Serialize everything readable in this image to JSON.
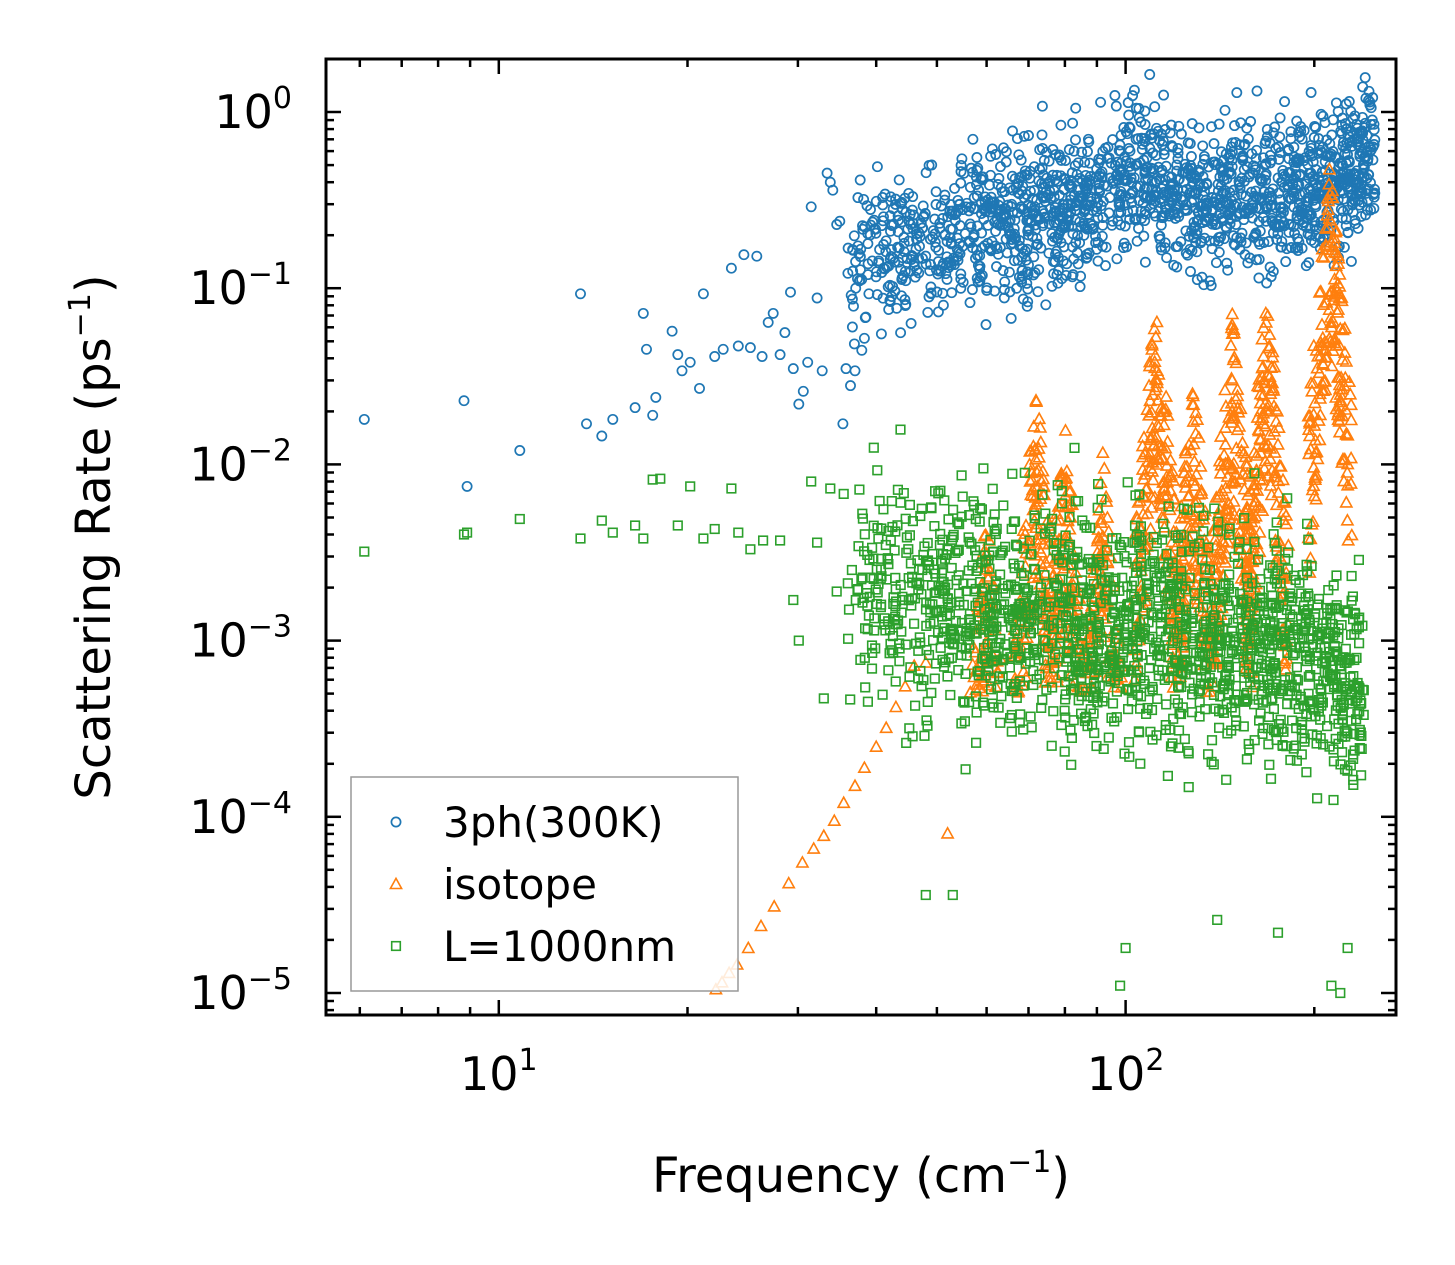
{
  "chart_data": {
    "type": "scatter",
    "xscale": "log",
    "yscale": "log",
    "xlabel": "Frequency (cm",
    "xlabel_unit_exp": "−1",
    "xlabel_close": ")",
    "ylabel": "Scattering Rate (ps",
    "ylabel_unit_exp": "−1",
    "ylabel_close": ")",
    "xlim": [
      5.3,
      270
    ],
    "ylim": [
      7.5e-06,
      2.0
    ],
    "x_ticks": [
      {
        "value": 10,
        "base": "10",
        "exp": "1"
      },
      {
        "value": 100,
        "base": "10",
        "exp": "2"
      }
    ],
    "y_ticks": [
      {
        "value": 1,
        "base": "10",
        "exp": "0"
      },
      {
        "value": 0.1,
        "base": "10",
        "exp": "−1"
      },
      {
        "value": 0.01,
        "base": "10",
        "exp": "−2"
      },
      {
        "value": 0.001,
        "base": "10",
        "exp": "−3"
      },
      {
        "value": 0.0001,
        "base": "10",
        "exp": "−4"
      },
      {
        "value": 1e-05,
        "base": "10",
        "exp": "−5"
      }
    ],
    "legend_position": "lower-left",
    "series": [
      {
        "name": "3ph(300K)",
        "marker": "circle",
        "color": "#1f77b4",
        "points": [
          [
            6.1,
            0.018
          ],
          [
            8.8,
            0.023
          ],
          [
            8.9,
            0.0075
          ],
          [
            10.8,
            0.012
          ],
          [
            13.5,
            0.093
          ],
          [
            13.8,
            0.017
          ],
          [
            14.6,
            0.0145
          ],
          [
            15.2,
            0.018
          ],
          [
            16.5,
            0.021
          ],
          [
            17,
            0.072
          ],
          [
            17.2,
            0.045
          ],
          [
            17.6,
            0.019
          ],
          [
            17.8,
            0.024
          ],
          [
            18.9,
            0.057
          ],
          [
            19.3,
            0.042
          ],
          [
            19.6,
            0.034
          ],
          [
            20.2,
            0.038
          ],
          [
            20.9,
            0.027
          ],
          [
            21.2,
            0.093
          ],
          [
            22.1,
            0.041
          ],
          [
            22.8,
            0.045
          ],
          [
            23.5,
            0.13
          ],
          [
            24.1,
            0.047
          ],
          [
            24.6,
            0.155
          ],
          [
            25.2,
            0.046
          ],
          [
            25.8,
            0.152
          ],
          [
            26.3,
            0.041
          ],
          [
            26.9,
            0.064
          ],
          [
            27.4,
            0.072
          ],
          [
            28.1,
            0.042
          ],
          [
            28.6,
            0.056
          ],
          [
            29.2,
            0.095
          ],
          [
            29.5,
            0.035
          ],
          [
            30.1,
            0.022
          ],
          [
            30.6,
            0.026
          ],
          [
            31.1,
            0.038
          ],
          [
            31.5,
            0.29
          ],
          [
            32.2,
            0.088
          ],
          [
            32.8,
            0.034
          ],
          [
            33.4,
            0.45
          ],
          [
            33.8,
            0.4
          ],
          [
            34.1,
            0.36
          ],
          [
            34.6,
            0.23
          ],
          [
            35,
            0.24
          ],
          [
            35.4,
            0.017
          ],
          [
            35.8,
            0.035
          ],
          [
            36.4,
            0.028
          ],
          [
            37,
            0.034
          ],
          [
            37.6,
            0.11
          ],
          [
            38.3,
            0.052
          ]
        ],
        "band": {
          "x_start": 36,
          "x_end": 250,
          "center": [
            0.13,
            0.17,
            0.2,
            0.25,
            0.3,
            0.45,
            0.3,
            0.35,
            0.4,
            0.55
          ],
          "spread": 2.6
        }
      },
      {
        "name": "isotope",
        "marker": "triangle",
        "color": "#ff7f0e",
        "points": [
          [
            22.2,
            1.05e-05
          ],
          [
            22.7,
            1.15e-05
          ],
          [
            23.3,
            1.3e-05
          ],
          [
            24,
            1.45e-05
          ],
          [
            25,
            1.8e-05
          ],
          [
            26.2,
            2.4e-05
          ],
          [
            27.5,
            3.1e-05
          ],
          [
            29,
            4.2e-05
          ],
          [
            30.5,
            5.5e-05
          ],
          [
            31.8,
            6.6e-05
          ],
          [
            33,
            7.8e-05
          ],
          [
            34.3,
            9.5e-05
          ],
          [
            35.5,
            0.00012
          ],
          [
            37,
            0.00015
          ],
          [
            38.3,
            0.00019
          ],
          [
            40,
            0.00025
          ],
          [
            41.5,
            0.00032
          ],
          [
            43,
            0.00042
          ],
          [
            44.5,
            0.00055
          ],
          [
            46,
            0.00072
          ],
          [
            48,
            0.00075
          ],
          [
            52,
            8.05e-05
          ]
        ],
        "peaks": [
          {
            "x": 60,
            "y": 0.006
          },
          {
            "x": 72,
            "y": 0.03
          },
          {
            "x": 80,
            "y": 0.018
          },
          {
            "x": 92,
            "y": 0.013
          },
          {
            "x": 112,
            "y": 0.1
          },
          {
            "x": 128,
            "y": 0.035
          },
          {
            "x": 148,
            "y": 0.08
          },
          {
            "x": 168,
            "y": 0.11
          },
          {
            "x": 212,
            "y": 0.55
          }
        ]
      },
      {
        "name": "L=1000nm",
        "marker": "square",
        "color": "#2ca02c",
        "points": [
          [
            6.1,
            0.0032
          ],
          [
            8.8,
            0.004
          ],
          [
            8.9,
            0.0041
          ],
          [
            10.8,
            0.0049
          ],
          [
            13.5,
            0.0038
          ],
          [
            14.6,
            0.0048
          ],
          [
            15.2,
            0.0041
          ],
          [
            16.5,
            0.0045
          ],
          [
            17,
            0.0038
          ],
          [
            17.6,
            0.0082
          ],
          [
            18.1,
            0.0083
          ],
          [
            19.3,
            0.0045
          ],
          [
            20.2,
            0.0075
          ],
          [
            21.2,
            0.0038
          ],
          [
            22.1,
            0.0043
          ],
          [
            23.5,
            0.0073
          ],
          [
            24.1,
            0.0041
          ],
          [
            25.2,
            0.0033
          ],
          [
            26.4,
            0.0037
          ],
          [
            28.1,
            0.0037
          ],
          [
            29.5,
            0.0017
          ],
          [
            30.1,
            0.001
          ],
          [
            31.5,
            0.008
          ],
          [
            32.2,
            0.0036
          ],
          [
            33,
            0.00047
          ],
          [
            33.8,
            0.0073
          ],
          [
            34.6,
            0.0019
          ],
          [
            35.5,
            0.0068
          ],
          [
            36.2,
            0.0015
          ],
          [
            37.6,
            0.0072
          ],
          [
            38.8,
            0.00045
          ],
          [
            40.5,
            0.0062
          ],
          [
            48,
            3.6e-05
          ],
          [
            53,
            3.6e-05
          ],
          [
            98,
            1.1e-05
          ],
          [
            100,
            1.8e-05
          ],
          [
            140,
            2.6e-05
          ],
          [
            175,
            2.2e-05
          ],
          [
            213,
            1.1e-05
          ],
          [
            220,
            1e-05
          ],
          [
            226,
            1.8e-05
          ]
        ],
        "band": {
          "x_start": 36,
          "x_end": 240,
          "center": [
            0.0022,
            0.0017,
            0.0015,
            0.0014,
            0.0013,
            0.0012,
            0.0011,
            0.0009,
            0.0008,
            0.0005
          ],
          "spread": 4.5
        }
      }
    ]
  }
}
